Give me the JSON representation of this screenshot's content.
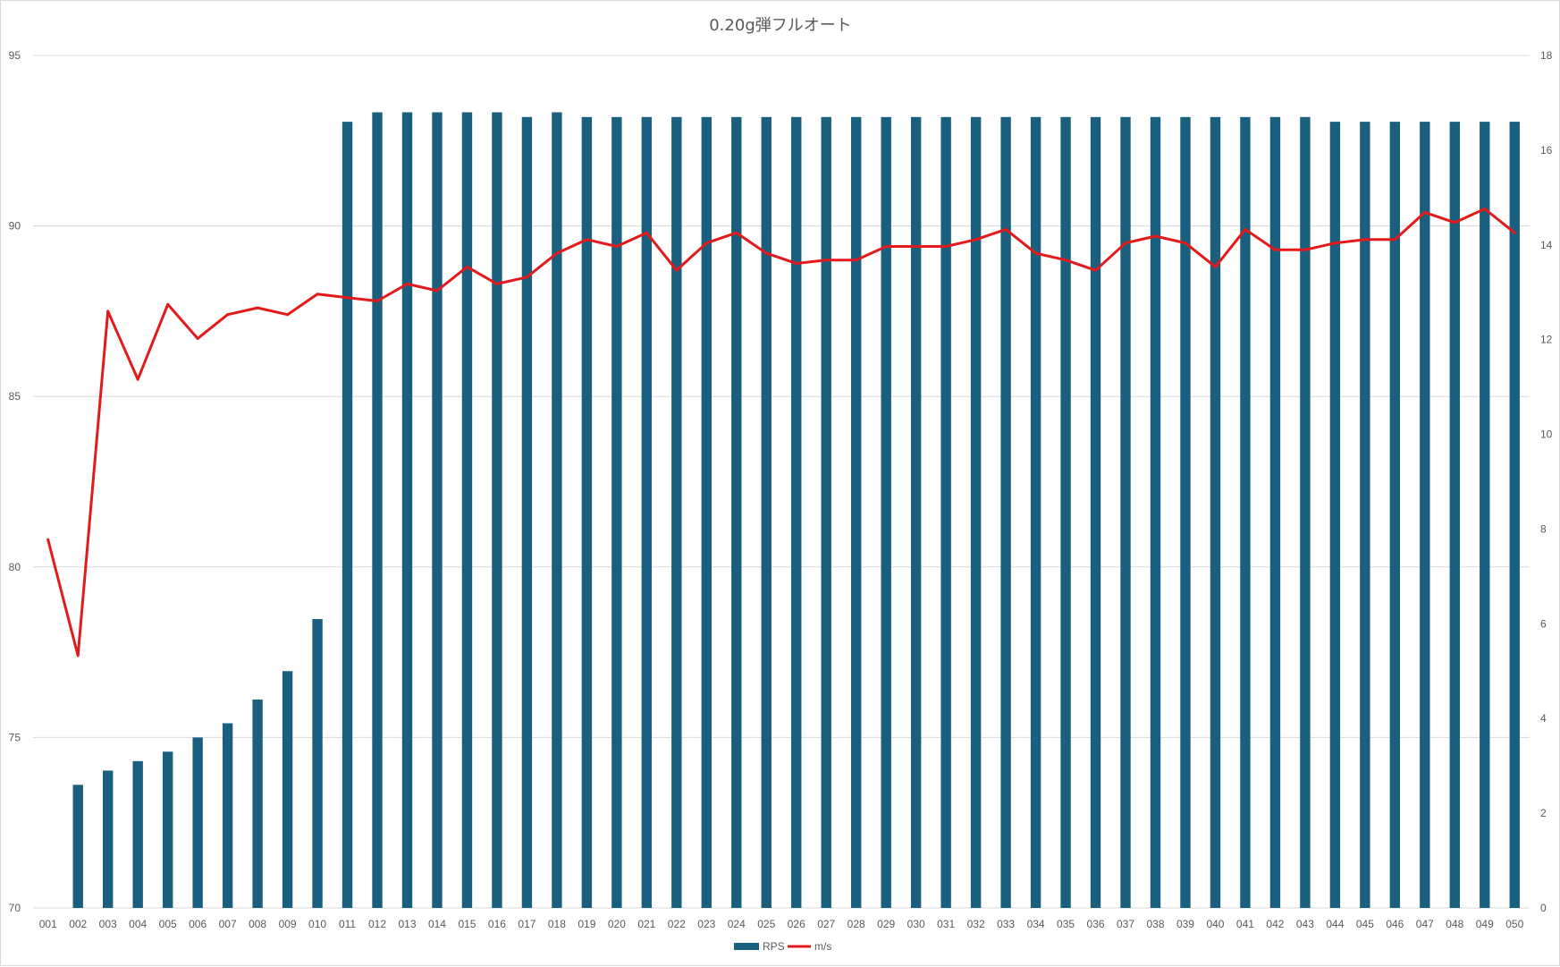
{
  "chart_data": {
    "type": "bar",
    "title": "0.20g弾フルオート",
    "categories": [
      "001",
      "002",
      "003",
      "004",
      "005",
      "006",
      "007",
      "008",
      "009",
      "010",
      "011",
      "012",
      "013",
      "014",
      "015",
      "016",
      "017",
      "018",
      "019",
      "020",
      "021",
      "022",
      "023",
      "024",
      "025",
      "026",
      "027",
      "028",
      "029",
      "030",
      "031",
      "032",
      "033",
      "034",
      "035",
      "036",
      "037",
      "038",
      "039",
      "040",
      "041",
      "042",
      "043",
      "044",
      "045",
      "046",
      "047",
      "048",
      "049",
      "050"
    ],
    "series": [
      {
        "name": "RPS",
        "type": "bar",
        "axis": "right",
        "color": "#1a5f7e",
        "values": [
          0.0,
          2.6,
          2.9,
          3.1,
          3.3,
          3.6,
          3.9,
          4.4,
          5.0,
          6.1,
          16.6,
          16.8,
          16.8,
          16.8,
          16.8,
          16.8,
          16.7,
          16.8,
          16.7,
          16.7,
          16.7,
          16.7,
          16.7,
          16.7,
          16.7,
          16.7,
          16.7,
          16.7,
          16.7,
          16.7,
          16.7,
          16.7,
          16.7,
          16.7,
          16.7,
          16.7,
          16.7,
          16.7,
          16.7,
          16.7,
          16.7,
          16.7,
          16.7,
          16.6,
          16.6,
          16.6,
          16.6,
          16.6,
          16.6,
          16.6
        ]
      },
      {
        "name": "m/s",
        "type": "line",
        "axis": "left",
        "color": "#e31a1c",
        "values": [
          80.8,
          77.4,
          87.5,
          85.5,
          87.7,
          86.7,
          87.4,
          87.6,
          87.4,
          88.0,
          87.9,
          87.8,
          88.3,
          88.1,
          88.8,
          88.3,
          88.5,
          89.2,
          89.6,
          89.4,
          89.8,
          88.7,
          89.5,
          89.8,
          89.2,
          88.9,
          89.0,
          89.0,
          89.4,
          89.4,
          89.4,
          89.6,
          89.9,
          89.2,
          89.0,
          88.7,
          89.5,
          89.7,
          89.5,
          88.8,
          89.9,
          89.3,
          89.3,
          89.5,
          89.6,
          89.6,
          90.4,
          90.1,
          90.5,
          89.8
        ]
      }
    ],
    "y_left": {
      "min": 70,
      "max": 95,
      "ticks": [
        70,
        75,
        80,
        85,
        90,
        95
      ]
    },
    "y_right": {
      "min": 0,
      "max": 18,
      "ticks": [
        0,
        2,
        4,
        6,
        8,
        10,
        12,
        14,
        16,
        18
      ]
    },
    "grid": true,
    "legend": "bottom-center"
  }
}
